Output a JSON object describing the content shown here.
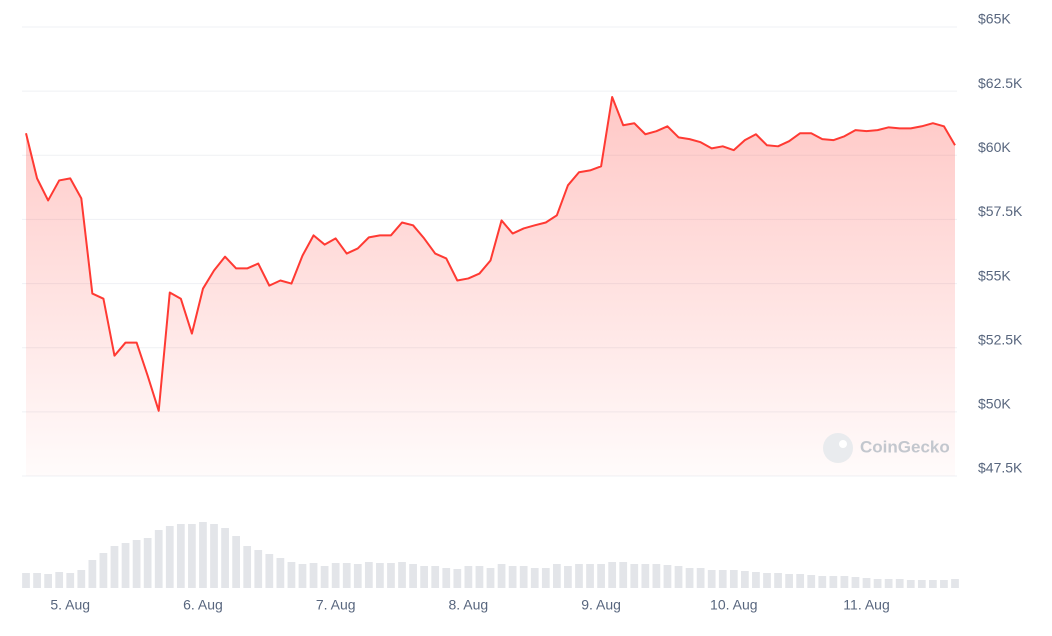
{
  "chart_data": {
    "type": "line",
    "watermark": "CoinGecko",
    "categories": [
      null,
      null,
      null,
      null,
      "5. Aug",
      null,
      null,
      null,
      null,
      null,
      null,
      null,
      null,
      null,
      null,
      null,
      "6. Aug",
      null,
      null,
      null,
      null,
      null,
      null,
      null,
      null,
      null,
      null,
      null,
      "7. Aug",
      null,
      null,
      null,
      null,
      null,
      null,
      null,
      null,
      null,
      null,
      null,
      "8. Aug",
      null,
      null,
      null,
      null,
      null,
      null,
      null,
      null,
      null,
      null,
      null,
      "9. Aug",
      null,
      null,
      null,
      null,
      null,
      null,
      null,
      null,
      null,
      null,
      null,
      "10. Aug",
      null,
      null,
      null,
      null,
      null,
      null,
      null,
      null,
      null,
      null,
      null,
      "11. Aug",
      null,
      null,
      null,
      null,
      null,
      null,
      null,
      null
    ],
    "series": [
      {
        "name": "Price",
        "color": "#ff3a33",
        "values": [
          60860,
          59100,
          58240,
          59020,
          59100,
          58320,
          54610,
          54410,
          52190,
          52700,
          52700,
          51410,
          50040,
          54650,
          54410,
          53050,
          54800,
          55510,
          56050,
          55590,
          55590,
          55780,
          54920,
          55120,
          55000,
          56090,
          56880,
          56520,
          56760,
          56170,
          56370,
          56800,
          56880,
          56880,
          57380,
          57270,
          56760,
          56170,
          55980,
          55120,
          55200,
          55390,
          55900,
          57460,
          56950,
          57150,
          57270,
          57380,
          57660,
          58830,
          59340,
          59410,
          59570,
          62270,
          61170,
          61250,
          60820,
          60940,
          61130,
          60700,
          60630,
          60510,
          60270,
          60350,
          60200,
          60590,
          60820,
          60390,
          60350,
          60550,
          60860,
          60860,
          60630,
          60590,
          60740,
          60980,
          60940,
          60980,
          61090,
          61050,
          61050,
          61130,
          61250,
          61130,
          60390
        ]
      },
      {
        "name": "Volume",
        "color": "#e3e5e9",
        "axis": "y2",
        "values": [
          15,
          15,
          14,
          16,
          15,
          18,
          28,
          35,
          42,
          45,
          48,
          50,
          58,
          62,
          64,
          64,
          66,
          64,
          60,
          52,
          42,
          38,
          34,
          30,
          26,
          24,
          25,
          22,
          25,
          25,
          24,
          26,
          25,
          25,
          26,
          24,
          22,
          22,
          20,
          19,
          22,
          22,
          20,
          24,
          22,
          22,
          20,
          20,
          24,
          22,
          24,
          24,
          24,
          26,
          26,
          24,
          24,
          24,
          23,
          22,
          20,
          20,
          18,
          18,
          18,
          17,
          16,
          15,
          15,
          14,
          14,
          13,
          12,
          12,
          12,
          11,
          10,
          9,
          9,
          9,
          8,
          8,
          8,
          8,
          9
        ]
      }
    ],
    "ylim": [
      47500,
      65000
    ],
    "yticks": [
      {
        "value": 47500,
        "label": "$47.5K"
      },
      {
        "value": 50000,
        "label": "$50K"
      },
      {
        "value": 52500,
        "label": "$52.5K"
      },
      {
        "value": 55000,
        "label": "$55K"
      },
      {
        "value": 57500,
        "label": "$57.5K"
      },
      {
        "value": 60000,
        "label": "$60K"
      },
      {
        "value": 62500,
        "label": "$62.5K"
      },
      {
        "value": 65000,
        "label": "$65K"
      }
    ],
    "y2lim": [
      0,
      100
    ],
    "grid": true
  }
}
